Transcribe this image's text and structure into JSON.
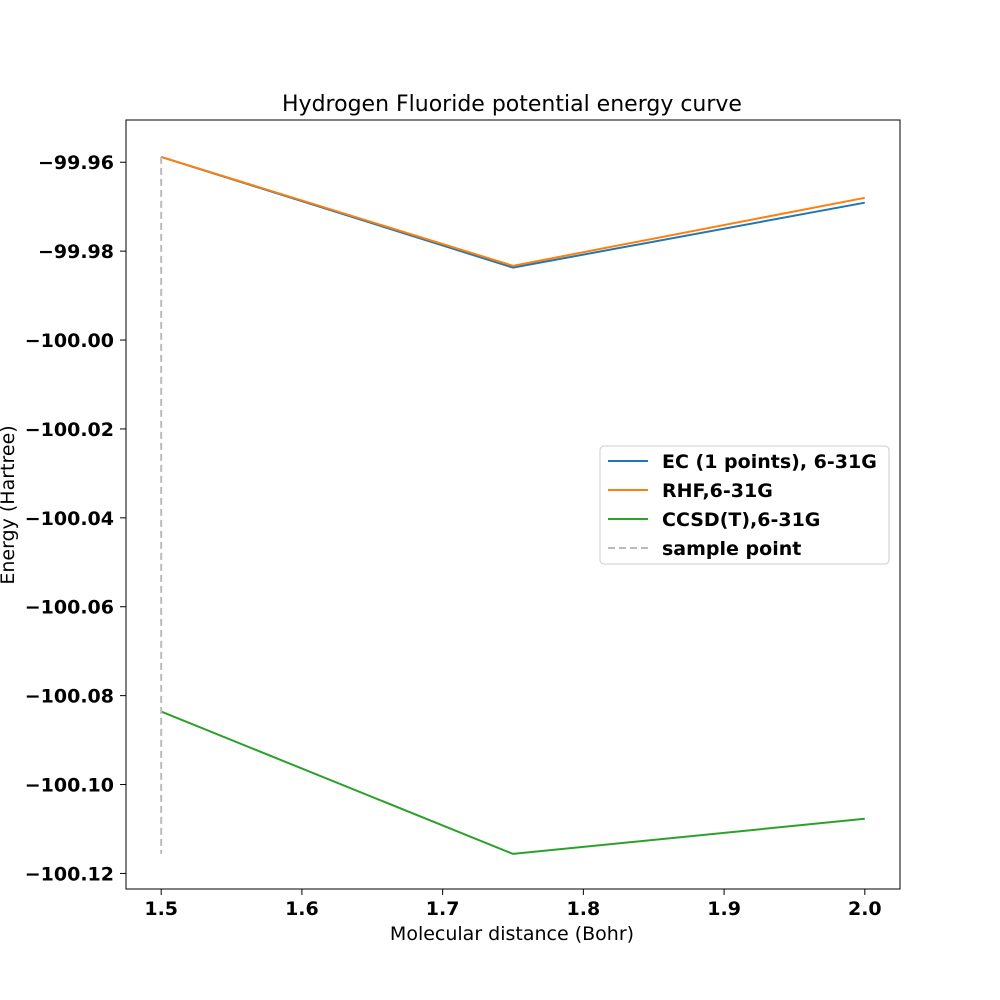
{
  "chart_data": {
    "type": "line",
    "title": "Hydrogen Fluoride potential energy curve",
    "xlabel": "Molecular distance (Bohr)",
    "ylabel": "Energy (Hartree)",
    "xlim": [
      1.475,
      2.025
    ],
    "ylim": [
      -100.1235,
      -99.9505
    ],
    "xticks": [
      1.5,
      1.6,
      1.7,
      1.8,
      1.9,
      2.0
    ],
    "xtick_labels": [
      "1.5",
      "1.6",
      "1.7",
      "1.8",
      "1.9",
      "2.0"
    ],
    "yticks": [
      -99.96,
      -99.98,
      -100.0,
      -100.02,
      -100.04,
      -100.06,
      -100.08,
      -100.1,
      -100.12
    ],
    "ytick_labels": [
      "−99.96",
      "−99.98",
      "−100.00",
      "−100.02",
      "−100.04",
      "−100.06",
      "−100.08",
      "−100.10",
      "−100.12"
    ],
    "grid": false,
    "legend_position": "center-right",
    "series": [
      {
        "name": "EC (1 points), 6-31G",
        "color": "#1f77b4",
        "dash": "solid",
        "x": [
          1.5,
          1.75,
          2.0
        ],
        "y": [
          -99.9588,
          -99.9837,
          -99.9691
        ]
      },
      {
        "name": "RHF,6-31G",
        "color": "#ff7f0e",
        "dash": "solid",
        "x": [
          1.5,
          1.75,
          2.0
        ],
        "y": [
          -99.9588,
          -99.9833,
          -99.968
        ]
      },
      {
        "name": "CCSD(T),6-31G",
        "color": "#2ca02c",
        "dash": "solid",
        "x": [
          1.5,
          1.75,
          2.0
        ],
        "y": [
          -100.0836,
          -100.1156,
          -100.1077
        ]
      },
      {
        "name": "sample point",
        "color": "#bbbbbb",
        "dash": "dashed",
        "x": [
          1.5,
          1.5
        ],
        "y": [
          -99.9588,
          -100.1156
        ]
      }
    ]
  }
}
